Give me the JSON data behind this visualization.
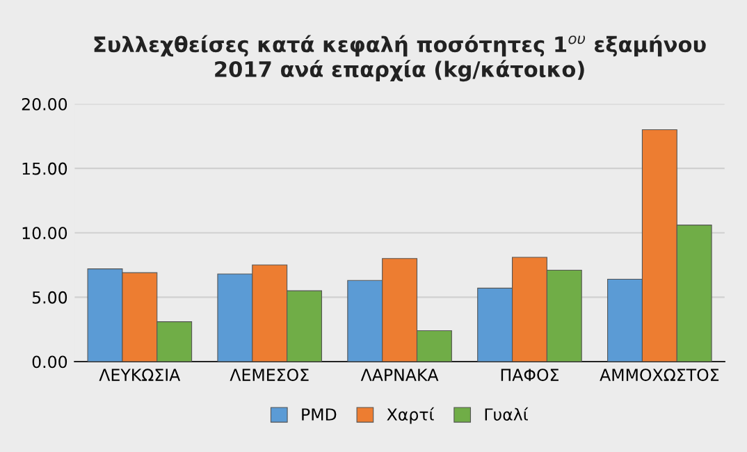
{
  "chart_data": {
    "type": "bar",
    "title": "Συλλεχθείσες κατά κεφαλή ποσότητες 1$^{ου}$ εξαμήνου\n2017 ανά επαρχία (kg/κάτοικο)",
    "categories": [
      "ΛΕΥΚΩΣΙΑ",
      "ΛΕΜΕΣΟΣ",
      "ΛΑΡΝΑΚΑ",
      "ΠΑΦΟΣ",
      "ΑΜΜΟΧΩΣΤΟΣ"
    ],
    "series": [
      {
        "name": "PMD",
        "color": "#5b9bd5",
        "values": [
          7.2,
          6.8,
          6.3,
          5.7,
          6.4
        ]
      },
      {
        "name": "Χαρτί",
        "color": "#ed7d31",
        "values": [
          6.9,
          7.5,
          8.0,
          8.1,
          18.0
        ]
      },
      {
        "name": "Γυαλί",
        "color": "#70ad47",
        "values": [
          3.1,
          5.5,
          2.4,
          7.1,
          10.6
        ]
      }
    ],
    "ylim": [
      0,
      20
    ],
    "yticks": [
      {
        "value": 0,
        "label": "0.00"
      },
      {
        "value": 5,
        "label": "5.00"
      },
      {
        "value": 10,
        "label": "10.00"
      },
      {
        "value": 15,
        "label": "15.00"
      },
      {
        "value": 20,
        "label": "20.00"
      }
    ],
    "grid": "y",
    "legend": "bottom"
  }
}
